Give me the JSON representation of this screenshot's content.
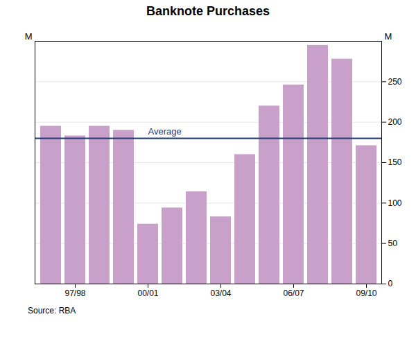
{
  "chart_data": {
    "type": "bar",
    "title": "Banknote Purchases",
    "categories": [
      null,
      "97/98",
      null,
      null,
      "00/01",
      null,
      null,
      "03/04",
      null,
      null,
      "06/07",
      null,
      null,
      "09/10"
    ],
    "values": [
      195,
      183,
      195,
      190,
      74,
      94,
      114,
      83,
      160,
      220,
      246,
      295,
      278,
      171
    ],
    "color": "#c9a0c9",
    "ylabel": "M",
    "ylim": [
      0,
      300
    ],
    "yticks": [
      0,
      50,
      100,
      150,
      200,
      250
    ],
    "y2label": "M",
    "y2lim": [
      0,
      300
    ],
    "y2ticks": [
      0,
      50,
      100,
      150,
      200,
      250
    ],
    "grid": true,
    "annotations": [
      {
        "y": 180,
        "text": "Average",
        "color": "#1f3a7a"
      }
    ],
    "caption": "Source: RBA"
  }
}
